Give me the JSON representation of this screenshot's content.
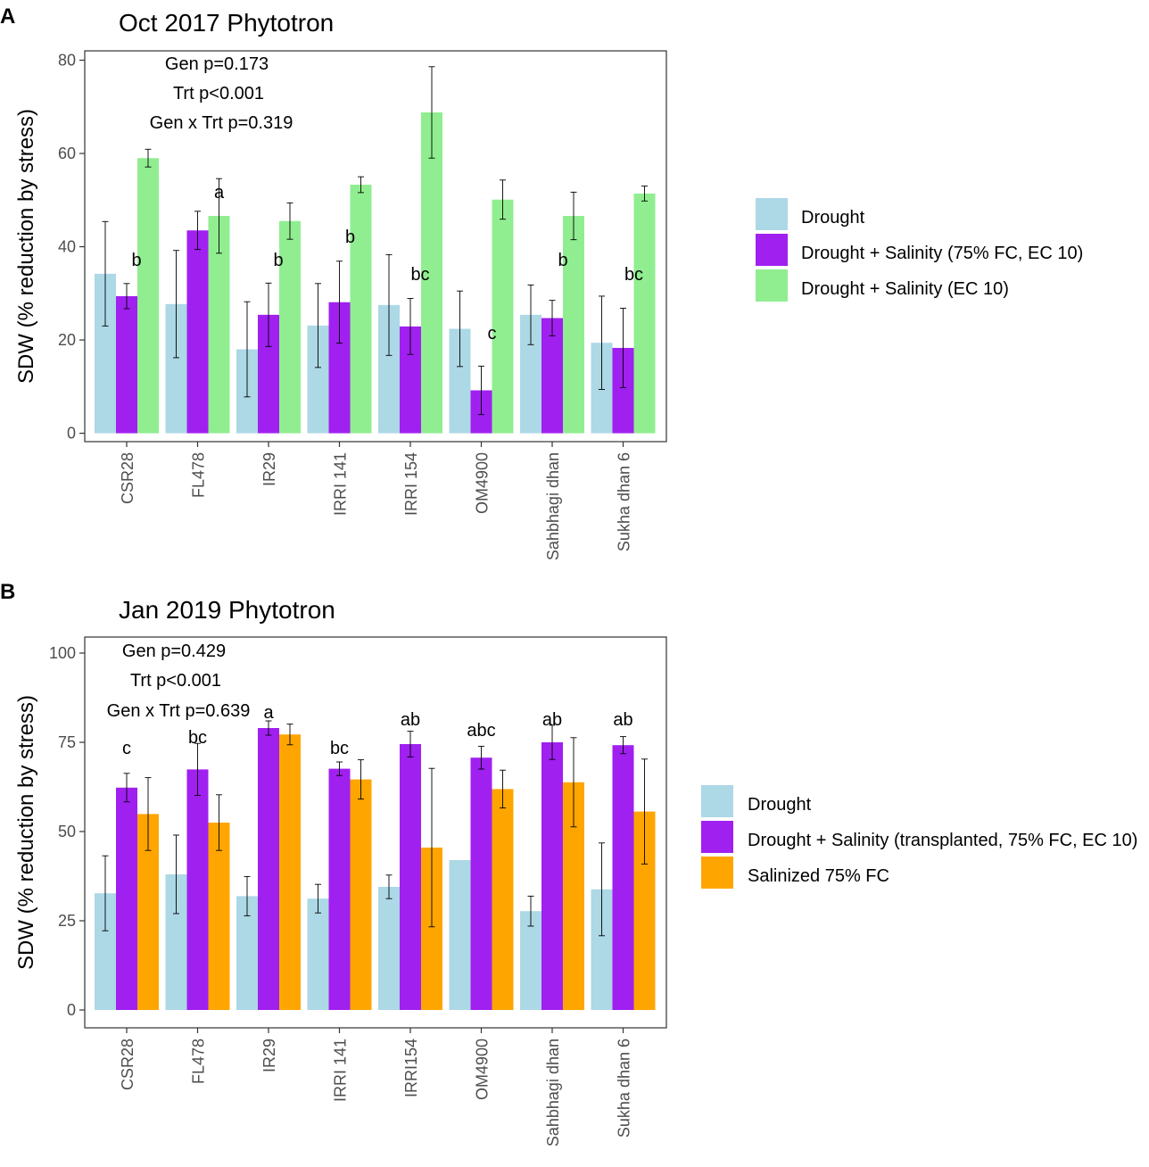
{
  "chart_data": [
    {
      "type": "bar",
      "panel_label": "A",
      "title": "Oct 2017 Phytotron",
      "xlabel": "",
      "ylabel": "SDW (% reduction by stress)",
      "ylim": [
        -1.8,
        82.0
      ],
      "yticks": [
        0,
        20,
        40,
        60,
        80
      ],
      "categories": [
        "CSR28",
        "FL478",
        "IR29",
        "IRRI 141",
        "IRRI 154",
        "OM4900",
        "Sahbhagi dhan",
        "Sukha dhan 6"
      ],
      "series": [
        {
          "name": "Drought",
          "color": "#add8e6",
          "values": [
            34.2,
            27.7,
            18.0,
            23.1,
            27.5,
            22.4,
            25.4,
            19.4
          ],
          "errors": [
            11.2,
            11.5,
            10.2,
            9.0,
            10.8,
            8.1,
            6.4,
            10.0
          ]
        },
        {
          "name": "Drought + Salinity (75% FC, EC 10)",
          "color": "#a020f0",
          "values": [
            29.4,
            43.5,
            25.4,
            28.1,
            22.9,
            9.2,
            24.7,
            18.3
          ],
          "errors": [
            2.7,
            4.1,
            6.8,
            8.8,
            6.0,
            5.2,
            3.8,
            8.5
          ]
        },
        {
          "name": "Drought + Salinity (EC 10)",
          "color": "#90ee90",
          "values": [
            59.0,
            46.6,
            45.5,
            53.3,
            68.8,
            50.1,
            46.6,
            51.4
          ],
          "errors": [
            1.9,
            8.0,
            3.9,
            1.7,
            9.8,
            4.2,
            5.1,
            1.6
          ]
        }
      ],
      "significance_letters": [
        "b",
        "a",
        "b",
        "b",
        "bc",
        "c",
        "b",
        "bc"
      ],
      "stats_text": [
        "Gen p=0.173",
        "Trt p<0.001",
        "Gen x Trt p=0.319"
      ],
      "legend_position": "right"
    },
    {
      "type": "bar",
      "panel_label": "B",
      "title": "Jan 2019 Phytotron",
      "xlabel": "",
      "ylabel": "SDW (% reduction by stress)",
      "ylim": [
        -5.0,
        104.5
      ],
      "yticks": [
        0,
        25,
        50,
        75,
        100
      ],
      "categories": [
        "CSR28",
        "FL478",
        "IR29",
        "IRRI 141",
        "IRRI154",
        "OM4900",
        "Sahbhagi dhan",
        "Sukha dhan 6"
      ],
      "series": [
        {
          "name": "Drought",
          "color": "#add8e6",
          "values": [
            32.7,
            38.0,
            31.9,
            31.2,
            34.5,
            42.0,
            27.7,
            33.8
          ],
          "errors": [
            10.5,
            11.0,
            5.5,
            4.0,
            3.3,
            0.0,
            4.2,
            13.0
          ]
        },
        {
          "name": "Drought + Salinity (transplanted, 75% FC, EC 10)",
          "color": "#a020f0",
          "values": [
            62.3,
            67.4,
            79.0,
            67.6,
            74.5,
            70.7,
            75.0,
            74.2
          ],
          "errors": [
            4.0,
            7.3,
            2.0,
            1.9,
            3.6,
            3.2,
            4.8,
            2.4
          ]
        },
        {
          "name": "Salinized 75% FC",
          "color": "#ffa500",
          "values": [
            54.9,
            52.5,
            77.2,
            64.6,
            45.5,
            61.9,
            63.8,
            55.6
          ],
          "errors": [
            10.2,
            7.8,
            2.9,
            5.5,
            22.2,
            5.3,
            12.5,
            14.7
          ]
        }
      ],
      "significance_letters": [
        "c",
        "bc",
        "a",
        "bc",
        "ab",
        "abc",
        "ab",
        "ab"
      ],
      "stats_text": [
        "Gen p=0.429",
        "Trt p<0.001",
        "Gen x Trt p=0.639"
      ],
      "legend_position": "right"
    }
  ]
}
